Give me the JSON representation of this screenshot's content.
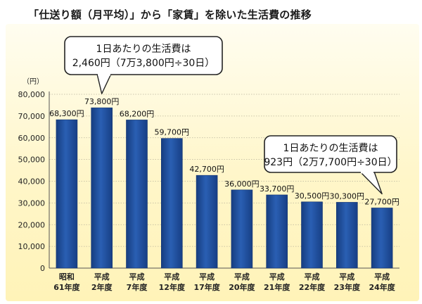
{
  "title": "「仕送り額（月平均）」から「家賃」を除いた生活費の推移",
  "chart_data": {
    "type": "bar",
    "title": "「仕送り額（月平均）」から「家賃」を除いた生活費の推移",
    "ylabel": "（円）",
    "xlabel": "",
    "ylim": [
      0,
      80000
    ],
    "yticks": [
      0,
      10000,
      20000,
      30000,
      40000,
      50000,
      60000,
      70000,
      80000
    ],
    "ytick_labels": [
      "0",
      "10,000",
      "20,000",
      "30,000",
      "40,000",
      "50,000",
      "60,000",
      "70,000",
      "80,000"
    ],
    "grid": true,
    "categories": [
      [
        "昭和",
        "61年度"
      ],
      [
        "平成",
        "2年度"
      ],
      [
        "平成",
        "7年度"
      ],
      [
        "平成",
        "12年度"
      ],
      [
        "平成",
        "17年度"
      ],
      [
        "平成",
        "20年度"
      ],
      [
        "平成",
        "21年度"
      ],
      [
        "平成",
        "22年度"
      ],
      [
        "平成",
        "23年度"
      ],
      [
        "平成",
        "24年度"
      ]
    ],
    "values": [
      68300,
      73800,
      68200,
      59700,
      42700,
      36000,
      33700,
      30500,
      30300,
      27700
    ],
    "value_labels": [
      "68,300円",
      "73,800円",
      "68,200円",
      "59,700円",
      "42,700円",
      "36,000円",
      "33,700円",
      "30,500円",
      "30,300円",
      "27,700円"
    ],
    "bar_color": "#1f4e9c",
    "annotations": [
      {
        "target_index": 1,
        "lines": [
          "1日あたりの生活費は",
          "2,460円（7万3,800円÷30日）"
        ]
      },
      {
        "target_index": 9,
        "lines": [
          "1日あたりの生活費は",
          "923円（2万7,700円÷30日）"
        ]
      }
    ]
  }
}
